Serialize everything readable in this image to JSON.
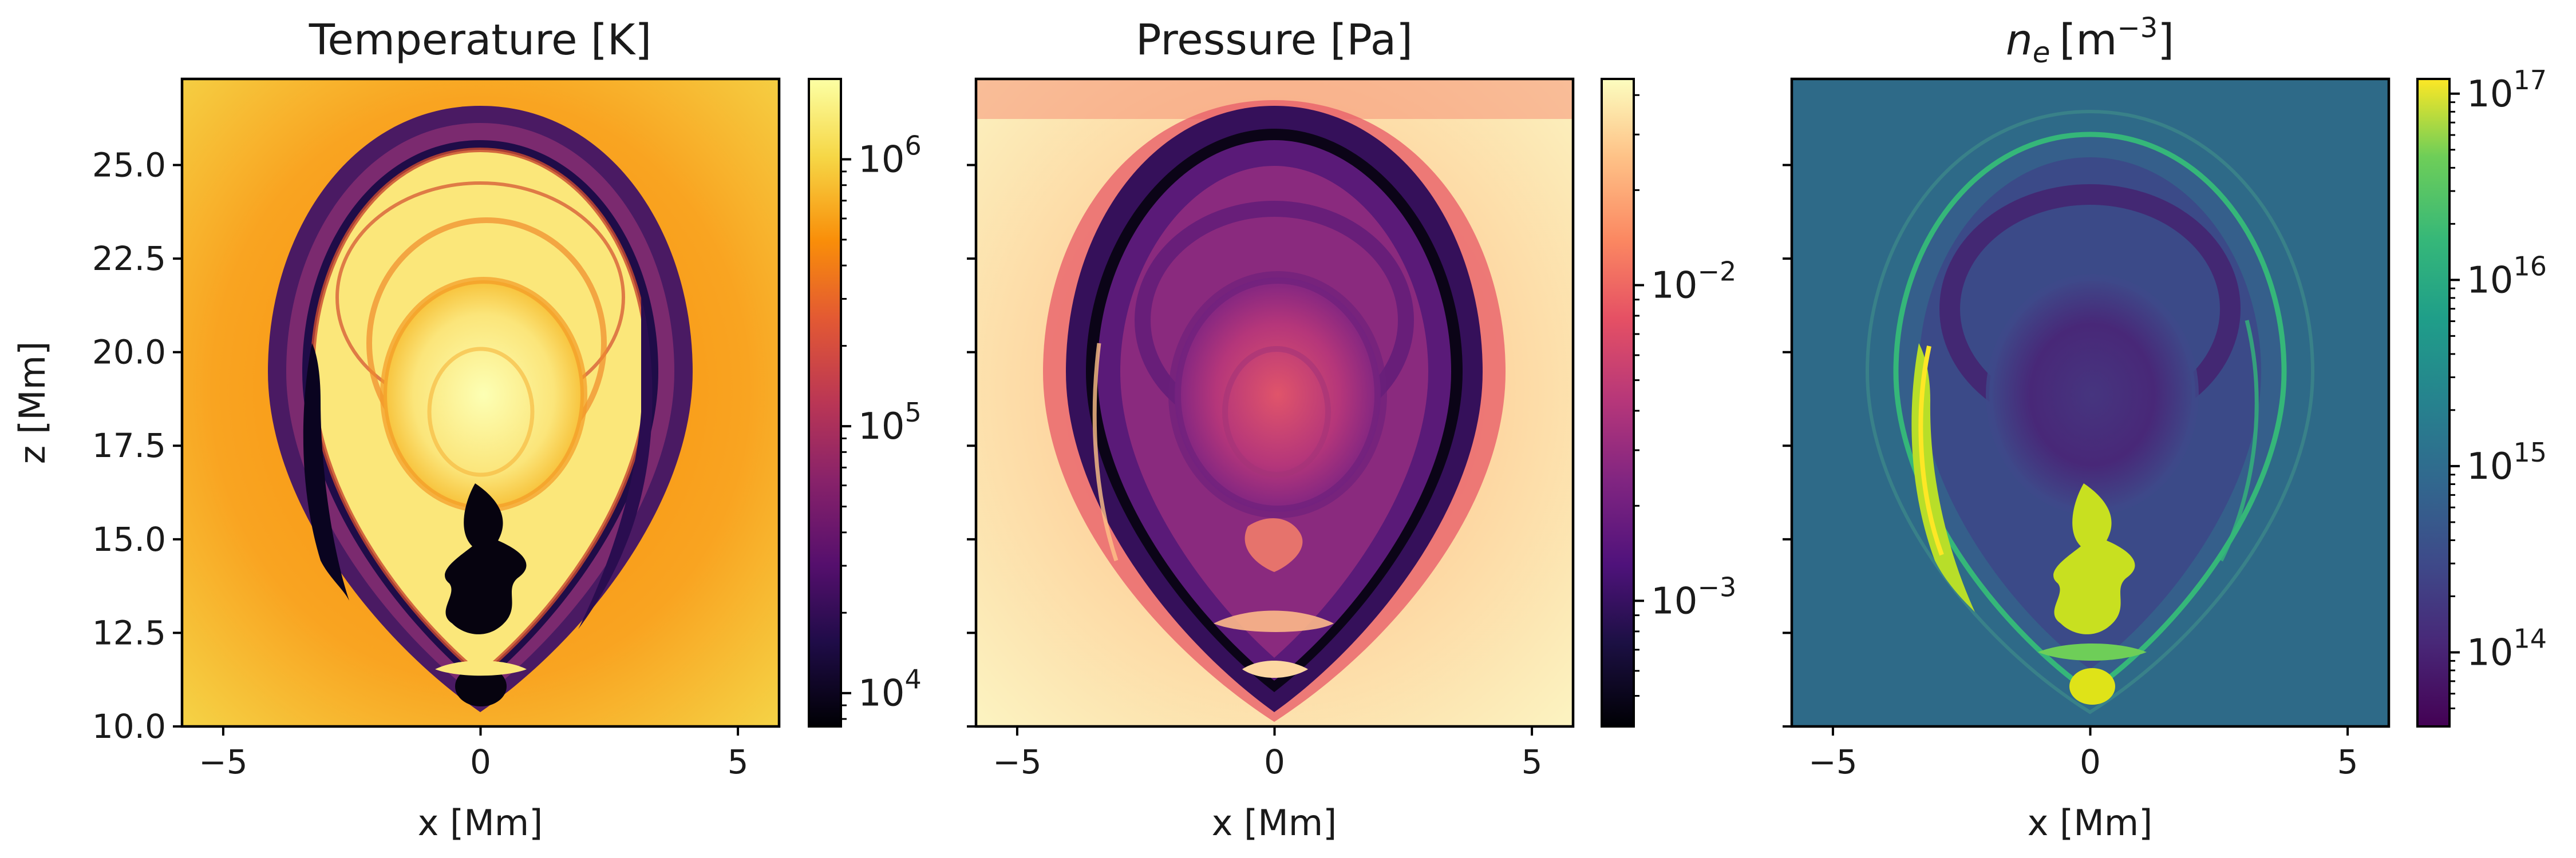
{
  "chart_data": [
    {
      "type": "heatmap",
      "title": "Temperature [K]",
      "xlabel": "x [Mm]",
      "ylabel": "z [Mm]",
      "xlim": [
        -5.8,
        5.8
      ],
      "ylim": [
        10.0,
        27.3
      ],
      "x_ticks": [
        -5,
        0,
        5
      ],
      "x_tick_labels": [
        "−5",
        "0",
        "5"
      ],
      "y_ticks": [
        10.0,
        12.5,
        15.0,
        17.5,
        20.0,
        22.5,
        25.0
      ],
      "y_tick_labels": [
        "10.0",
        "12.5",
        "15.0",
        "17.5",
        "20.0",
        "22.5",
        "25.0"
      ],
      "colormap": "inferno",
      "colorbar": {
        "scale": "log",
        "range": [
          7500,
          2000000
        ],
        "ticks": [
          10000,
          100000,
          1000000
        ],
        "tick_labels": [
          {
            "base": "10",
            "exp": "4"
          },
          {
            "base": "10",
            "exp": "5"
          },
          {
            "base": "10",
            "exp": "6"
          }
        ]
      },
      "background_value": 1000000,
      "features": [
        {
          "name": "hot core",
          "value": 1600000
        },
        {
          "name": "cool shell",
          "value": 20000
        },
        {
          "name": "cold filament",
          "value": 8000
        }
      ]
    },
    {
      "type": "heatmap",
      "title": "Pressure [Pa]",
      "xlabel": "x [Mm]",
      "xlim": [
        -5.8,
        5.8
      ],
      "ylim": [
        10.0,
        27.3
      ],
      "x_ticks": [
        -5,
        0,
        5
      ],
      "x_tick_labels": [
        "−5",
        "0",
        "5"
      ],
      "colormap": "magma",
      "colorbar": {
        "scale": "log",
        "range": [
          0.0004,
          0.045
        ],
        "ticks": [
          0.001,
          0.01
        ],
        "tick_labels": [
          {
            "base": "10",
            "exp": "−3"
          },
          {
            "base": "10",
            "exp": "−2"
          }
        ]
      },
      "background_value": 0.04,
      "features": [
        {
          "name": "inner bubble",
          "value": 0.006
        },
        {
          "name": "low-pressure shell",
          "value": 0.0008
        }
      ]
    },
    {
      "type": "heatmap",
      "title": {
        "symbol": "n",
        "sub": "e",
        "unit": "[m",
        "exp": "−3",
        "close": "]"
      },
      "xlabel": "x [Mm]",
      "xlim": [
        -5.8,
        5.8
      ],
      "ylim": [
        10.0,
        27.3
      ],
      "x_ticks": [
        -5,
        0,
        5
      ],
      "x_tick_labels": [
        "−5",
        "0",
        "5"
      ],
      "colormap": "viridis",
      "colorbar": {
        "scale": "log",
        "range": [
          40000000000000,
          120000000000000000
        ],
        "ticks": [
          100000000000000,
          1000000000000000,
          10000000000000000,
          100000000000000000
        ],
        "tick_labels": [
          {
            "base": "10",
            "exp": "14"
          },
          {
            "base": "10",
            "exp": "15"
          },
          {
            "base": "10",
            "exp": "16"
          },
          {
            "base": "10",
            "exp": "17"
          }
        ]
      },
      "background_value": 700000000000000,
      "features": [
        {
          "name": "dense filament",
          "value": 80000000000000000
        },
        {
          "name": "depleted interior",
          "value": 90000000000000
        }
      ]
    }
  ]
}
